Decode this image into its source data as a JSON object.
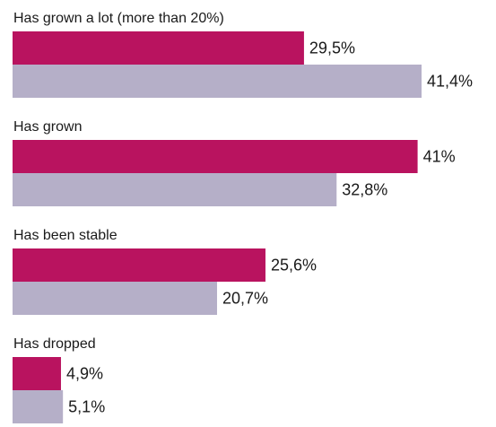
{
  "chart_data": {
    "type": "bar",
    "orientation": "horizontal",
    "title": "",
    "xlabel": "",
    "ylabel": "",
    "categories": [
      "Has grown a lot (more than 20%)",
      "Has grown",
      "Has been stable",
      "Has dropped"
    ],
    "series": [
      {
        "color": "#b9135f",
        "values": [
          29.5,
          41,
          25.6,
          4.9
        ],
        "labels": [
          "29,5%",
          "41%",
          "25,6%",
          "4,9%"
        ]
      },
      {
        "color": "#b5afc8",
        "values": [
          41.4,
          32.8,
          20.7,
          5.1
        ],
        "labels": [
          "41,4%",
          "32,8%",
          "20,7%",
          "5,1%"
        ]
      }
    ],
    "xlim": [
      0,
      41.4
    ],
    "grid": false,
    "legend": "none"
  }
}
